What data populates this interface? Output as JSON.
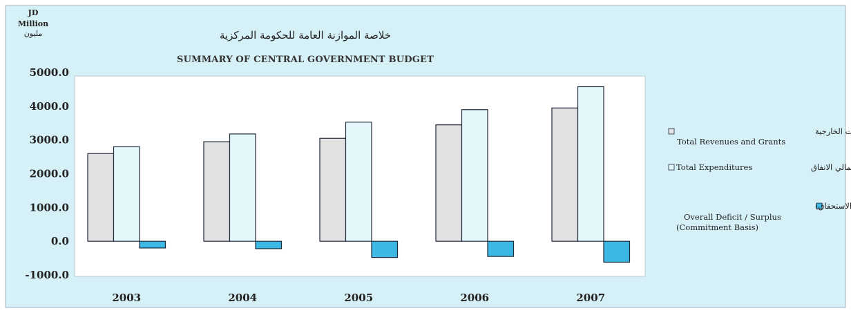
{
  "unit": {
    "line1": "JD",
    "line2": "Million",
    "line3": "مليون"
  },
  "colors": {
    "background": "#d6f0f7",
    "plot_area": "#ffffff",
    "revenues": "#e2e2e2",
    "expenditures": "#e4f7fa",
    "deficit": "#3bb9e4",
    "border": "#1f2a3a"
  },
  "chart_data": {
    "type": "bar",
    "title": "خلاصة الموازنة العامة للحكومة المركزية",
    "subtitle": "SUMMARY OF CENTRAL GOVERNMENT BUDGET",
    "categories": [
      "2003",
      "2004",
      "2005",
      "2006",
      "2007"
    ],
    "ylim": [
      -1000,
      5000
    ],
    "yticks": [
      "5000.0",
      "4000.0",
      "3000.0",
      "2000.0",
      "1000.0",
      "0.0",
      "-1000.0"
    ],
    "ytick_values": [
      5000,
      4000,
      3000,
      2000,
      1000,
      0,
      -1000
    ],
    "legend_position": "right",
    "grid": false,
    "series": [
      {
        "name_ar": "اجمالي الايرادات والمساعدات الخارجية",
        "name_en": "Total Revenues and Grants",
        "values": [
          2600,
          2950,
          3050,
          3450,
          3950
        ]
      },
      {
        "name_ar": "اجمالي الانفاق",
        "name_en": "Total Expenditures",
        "values": [
          2800,
          3180,
          3530,
          3900,
          4580
        ]
      },
      {
        "name_ar": "العجز/ الوفر الكلي (على اساس الاستحقاق)",
        "name_en": "Overall Deficit / Surplus",
        "name_en2": "(Commitment Basis)",
        "values": [
          -200,
          -220,
          -480,
          -450,
          -620
        ]
      }
    ]
  }
}
